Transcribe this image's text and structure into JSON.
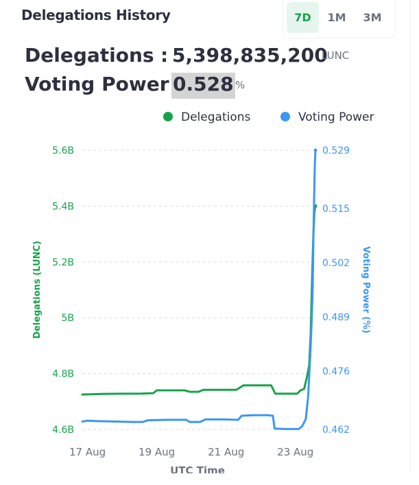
{
  "header": {
    "title": "Delegations History",
    "ranges": [
      {
        "label": "7D",
        "active": true
      },
      {
        "label": "1M",
        "active": false
      },
      {
        "label": "3M",
        "active": false
      }
    ]
  },
  "summary": {
    "delegations_label": "Delegations",
    "delegations_colon": ":",
    "delegations_value": "5,398,835,200",
    "delegations_unit": "LUNC",
    "voting_label": "Voting Power",
    "voting_colon": ":",
    "voting_value": "0.528",
    "voting_unit": "%"
  },
  "colors": {
    "delegations": "#16a34a",
    "voting_power": "#3b97f2",
    "grid": "#dcdcdc",
    "axis_text": "#6b7280"
  },
  "chart_data": {
    "type": "line",
    "xlabel": "UTC Time",
    "x_ticks": [
      "17 Aug",
      "19 Aug",
      "21 Aug",
      "23 Aug"
    ],
    "x_tick_days": [
      17,
      19,
      21,
      23
    ],
    "xlim": [
      16.85,
      23.5
    ],
    "legend": {
      "position": "top-right"
    },
    "grid": true,
    "y_left": {
      "label": "Delegations (LUNC)",
      "ticks": [
        "5.6B",
        "5.4B",
        "5.2B",
        "5B",
        "4.8B",
        "4.6B"
      ],
      "tick_values": [
        5.6,
        5.4,
        5.2,
        5.0,
        4.8,
        4.6
      ],
      "ylim": [
        4.6,
        5.6
      ]
    },
    "y_right": {
      "label": "Voting Power (%)",
      "ticks": [
        "0.529",
        "0.515",
        "0.502",
        "0.489",
        "0.476",
        "0.462"
      ],
      "tick_values": [
        0.529,
        0.515,
        0.502,
        0.489,
        0.476,
        0.462
      ],
      "ylim": [
        0.462,
        0.529
      ]
    },
    "series": [
      {
        "name": "Delegations",
        "axis": "left",
        "color": "#16a34a",
        "points": [
          [
            16.85,
            4.725
          ],
          [
            17.1,
            4.726
          ],
          [
            17.4,
            4.727
          ],
          [
            18.0,
            4.728
          ],
          [
            18.5,
            4.728
          ],
          [
            18.9,
            4.73
          ],
          [
            19.0,
            4.74
          ],
          [
            19.3,
            4.74
          ],
          [
            19.8,
            4.74
          ],
          [
            19.95,
            4.735
          ],
          [
            20.2,
            4.735
          ],
          [
            20.35,
            4.742
          ],
          [
            20.8,
            4.742
          ],
          [
            21.3,
            4.742
          ],
          [
            21.5,
            4.758
          ],
          [
            22.0,
            4.758
          ],
          [
            22.3,
            4.758
          ],
          [
            22.42,
            4.728
          ],
          [
            22.7,
            4.728
          ],
          [
            23.05,
            4.728
          ],
          [
            23.15,
            4.74
          ],
          [
            23.25,
            4.745
          ],
          [
            23.33,
            4.785
          ],
          [
            23.4,
            4.83
          ],
          [
            23.44,
            4.94
          ],
          [
            23.48,
            5.13
          ],
          [
            23.52,
            5.3
          ],
          [
            23.55,
            5.38
          ],
          [
            23.58,
            5.4
          ]
        ]
      },
      {
        "name": "Voting Power",
        "axis": "right",
        "color": "#3b97f2",
        "points": [
          [
            16.85,
            0.4639
          ],
          [
            17.0,
            0.4641
          ],
          [
            17.3,
            0.464
          ],
          [
            17.8,
            0.4639
          ],
          [
            18.3,
            0.4638
          ],
          [
            18.6,
            0.4638
          ],
          [
            18.75,
            0.4642
          ],
          [
            19.3,
            0.4643
          ],
          [
            19.85,
            0.4643
          ],
          [
            19.95,
            0.4638
          ],
          [
            20.25,
            0.4638
          ],
          [
            20.4,
            0.4644
          ],
          [
            20.9,
            0.4644
          ],
          [
            21.35,
            0.4643
          ],
          [
            21.45,
            0.4653
          ],
          [
            21.8,
            0.4654
          ],
          [
            22.2,
            0.4654
          ],
          [
            22.35,
            0.4653
          ],
          [
            22.4,
            0.4622
          ],
          [
            22.7,
            0.4621
          ],
          [
            23.1,
            0.4621
          ],
          [
            23.2,
            0.4628
          ],
          [
            23.3,
            0.4645
          ],
          [
            23.37,
            0.47
          ],
          [
            23.43,
            0.48
          ],
          [
            23.47,
            0.488
          ],
          [
            23.5,
            0.496
          ],
          [
            23.53,
            0.513
          ],
          [
            23.56,
            0.525
          ],
          [
            23.58,
            0.529
          ]
        ]
      }
    ]
  }
}
